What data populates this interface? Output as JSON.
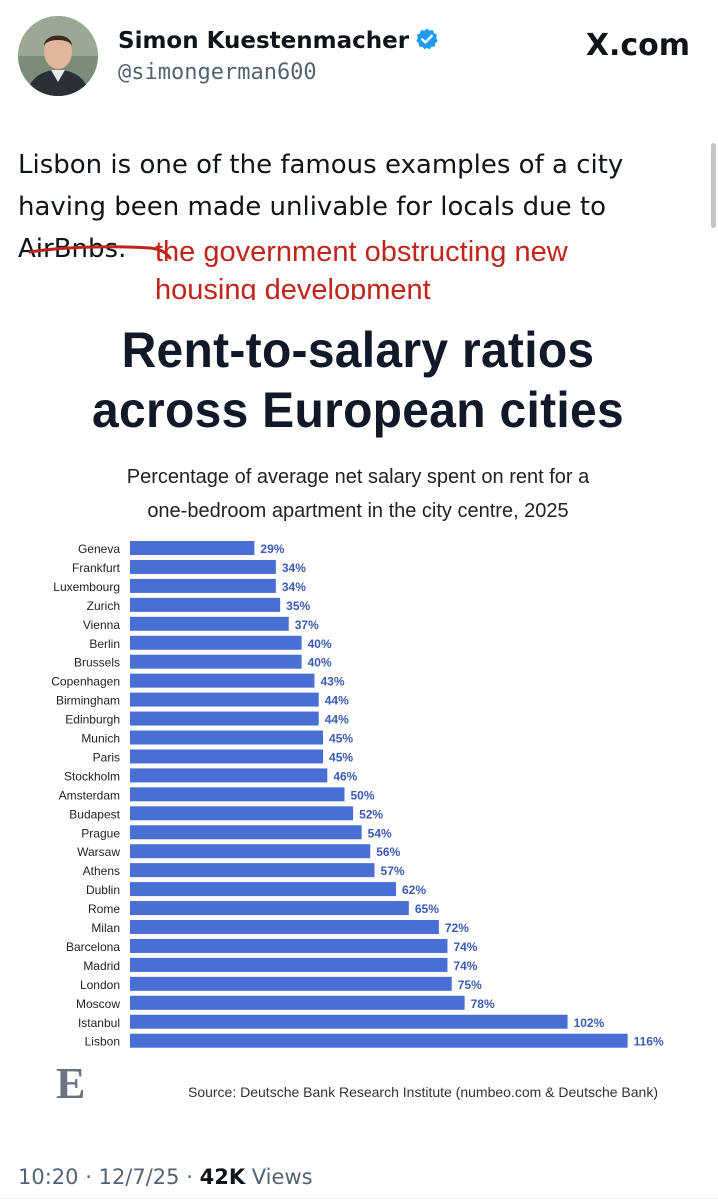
{
  "author": {
    "display_name": "Simon Kuestenmacher",
    "handle": "@simongerman600",
    "verified": true
  },
  "site_logo": "X.com",
  "tweet": {
    "line1": "Lisbon is one of the famous examples of a city",
    "line2": "having been made unlivable for locals due to",
    "struck_text": "AirBnbs.",
    "annotation_line1": "the government obstructing new",
    "annotation_line2": "housing development"
  },
  "infographic": {
    "title_line1": "Rent-to-salary ratios",
    "title_line2": "across European cities",
    "subtitle_line1": "Percentage of average net salary spent on rent for a",
    "subtitle_line2": "one-bedroom apartment in the city centre, 2025",
    "source": "Source: Deutsche Bank Research Institute (numbeo.com & Deutsche Bank)",
    "logo_letter": "E"
  },
  "chart_data": {
    "type": "bar",
    "orientation": "horizontal",
    "title": "Rent-to-salary ratios across European cities",
    "subtitle": "Percentage of average net salary spent on rent for a one-bedroom apartment in the city centre, 2025",
    "categories": [
      "Geneva",
      "Frankfurt",
      "Luxembourg",
      "Zurich",
      "Vienna",
      "Berlin",
      "Brussels",
      "Copenhagen",
      "Birmingham",
      "Edinburgh",
      "Munich",
      "Paris",
      "Stockholm",
      "Amsterdam",
      "Budapest",
      "Prague",
      "Warsaw",
      "Athens",
      "Dublin",
      "Rome",
      "Milan",
      "Barcelona",
      "Madrid",
      "London",
      "Moscow",
      "Istanbul",
      "Lisbon"
    ],
    "values": [
      29,
      34,
      34,
      35,
      37,
      40,
      40,
      43,
      44,
      44,
      45,
      45,
      46,
      50,
      52,
      54,
      56,
      57,
      62,
      65,
      72,
      74,
      74,
      75,
      78,
      102,
      116
    ],
    "value_suffix": "%",
    "bar_color": "#4a6fd4",
    "xlim": [
      0,
      116
    ]
  },
  "meta": {
    "time": "10:20",
    "date": "12/7/25",
    "views_count": "42K",
    "views_label": "Views"
  },
  "colors": {
    "annotation": "#c0251b",
    "verified": "#1d9bf0",
    "muted": "#536471"
  }
}
